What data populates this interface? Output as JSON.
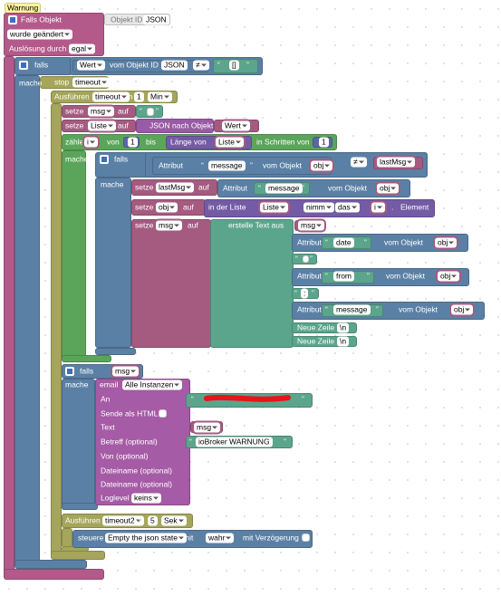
{
  "rows": [
    [
      "Warnung"
    ],
    [
      "Falls Objekt",
      "Objekt ID",
      "JSON"
    ],
    [
      "wurde geändert"
    ],
    [
      "Auslösung durch",
      "egal"
    ],
    [
      "falls",
      "Wert",
      "vom Objekt ID",
      "JSON",
      "≠",
      "“",
      "[]",
      "”"
    ],
    [
      "mache"
    ],
    [
      "stop",
      "timeout"
    ],
    [
      "Ausführen",
      "timeout",
      "in",
      "1",
      "Min"
    ],
    [
      "setze",
      "msg",
      "auf",
      "“",
      "”"
    ],
    [
      "setze",
      "Liste",
      "auf",
      "JSON nach Objekt",
      "Wert"
    ],
    [
      "zähle",
      "i",
      "von",
      "1",
      "bis",
      "Länge von",
      "Liste",
      "in Schritten von",
      "1"
    ],
    [
      "mache"
    ],
    [
      "falls",
      "Attribut",
      "“",
      "message",
      "”",
      "vom Objekt",
      "obj",
      "≠",
      "lastMsg"
    ],
    [
      "mache"
    ],
    [
      "setze",
      "lastMsg",
      "auf",
      "Attribut",
      "“",
      "message",
      "”",
      "vom Objekt",
      "obj"
    ],
    [
      "setze",
      "obj",
      "auf",
      "in der Liste",
      "Liste",
      "nimm",
      "das",
      "i",
      ".",
      "Element"
    ],
    [
      "setze",
      "msg",
      "auf",
      "erstelle Text aus",
      "msg"
    ],
    [
      "Attribut",
      "“",
      "date",
      "”",
      "vom Objekt",
      "obj"
    ],
    [
      "“",
      "”"
    ],
    [
      "Attribut",
      "“",
      "from",
      "”",
      "vom Objekt",
      "obj"
    ],
    [
      "“",
      ":",
      "”"
    ],
    [
      "Attribut",
      "“",
      "message",
      "”",
      "vom Objekt",
      "obj"
    ],
    [
      "Neue Zeile",
      "\\n"
    ],
    [
      "Neue Zeile",
      "\\n"
    ],
    [
      "falls",
      "msg"
    ],
    [
      "mache",
      "email",
      "Alle Instanzen"
    ],
    [
      "An",
      "“",
      "”"
    ],
    [
      "Sende als HTML"
    ],
    [
      "Text",
      "msg"
    ],
    [
      "Betreff (optional)",
      "“",
      "ioBroker WARNUNG",
      "”"
    ],
    [
      "Von (optional)"
    ],
    [
      "Dateiname (optional)"
    ],
    [
      "Dateiname (optional)"
    ],
    [
      "Loglevel",
      "keins"
    ],
    [
      "Ausführen",
      "timeout2",
      "in",
      "5",
      "Sek"
    ],
    [
      "steuere",
      "Empty the json state",
      "mit",
      "wahr",
      "mit Verzögerung"
    ]
  ]
}
